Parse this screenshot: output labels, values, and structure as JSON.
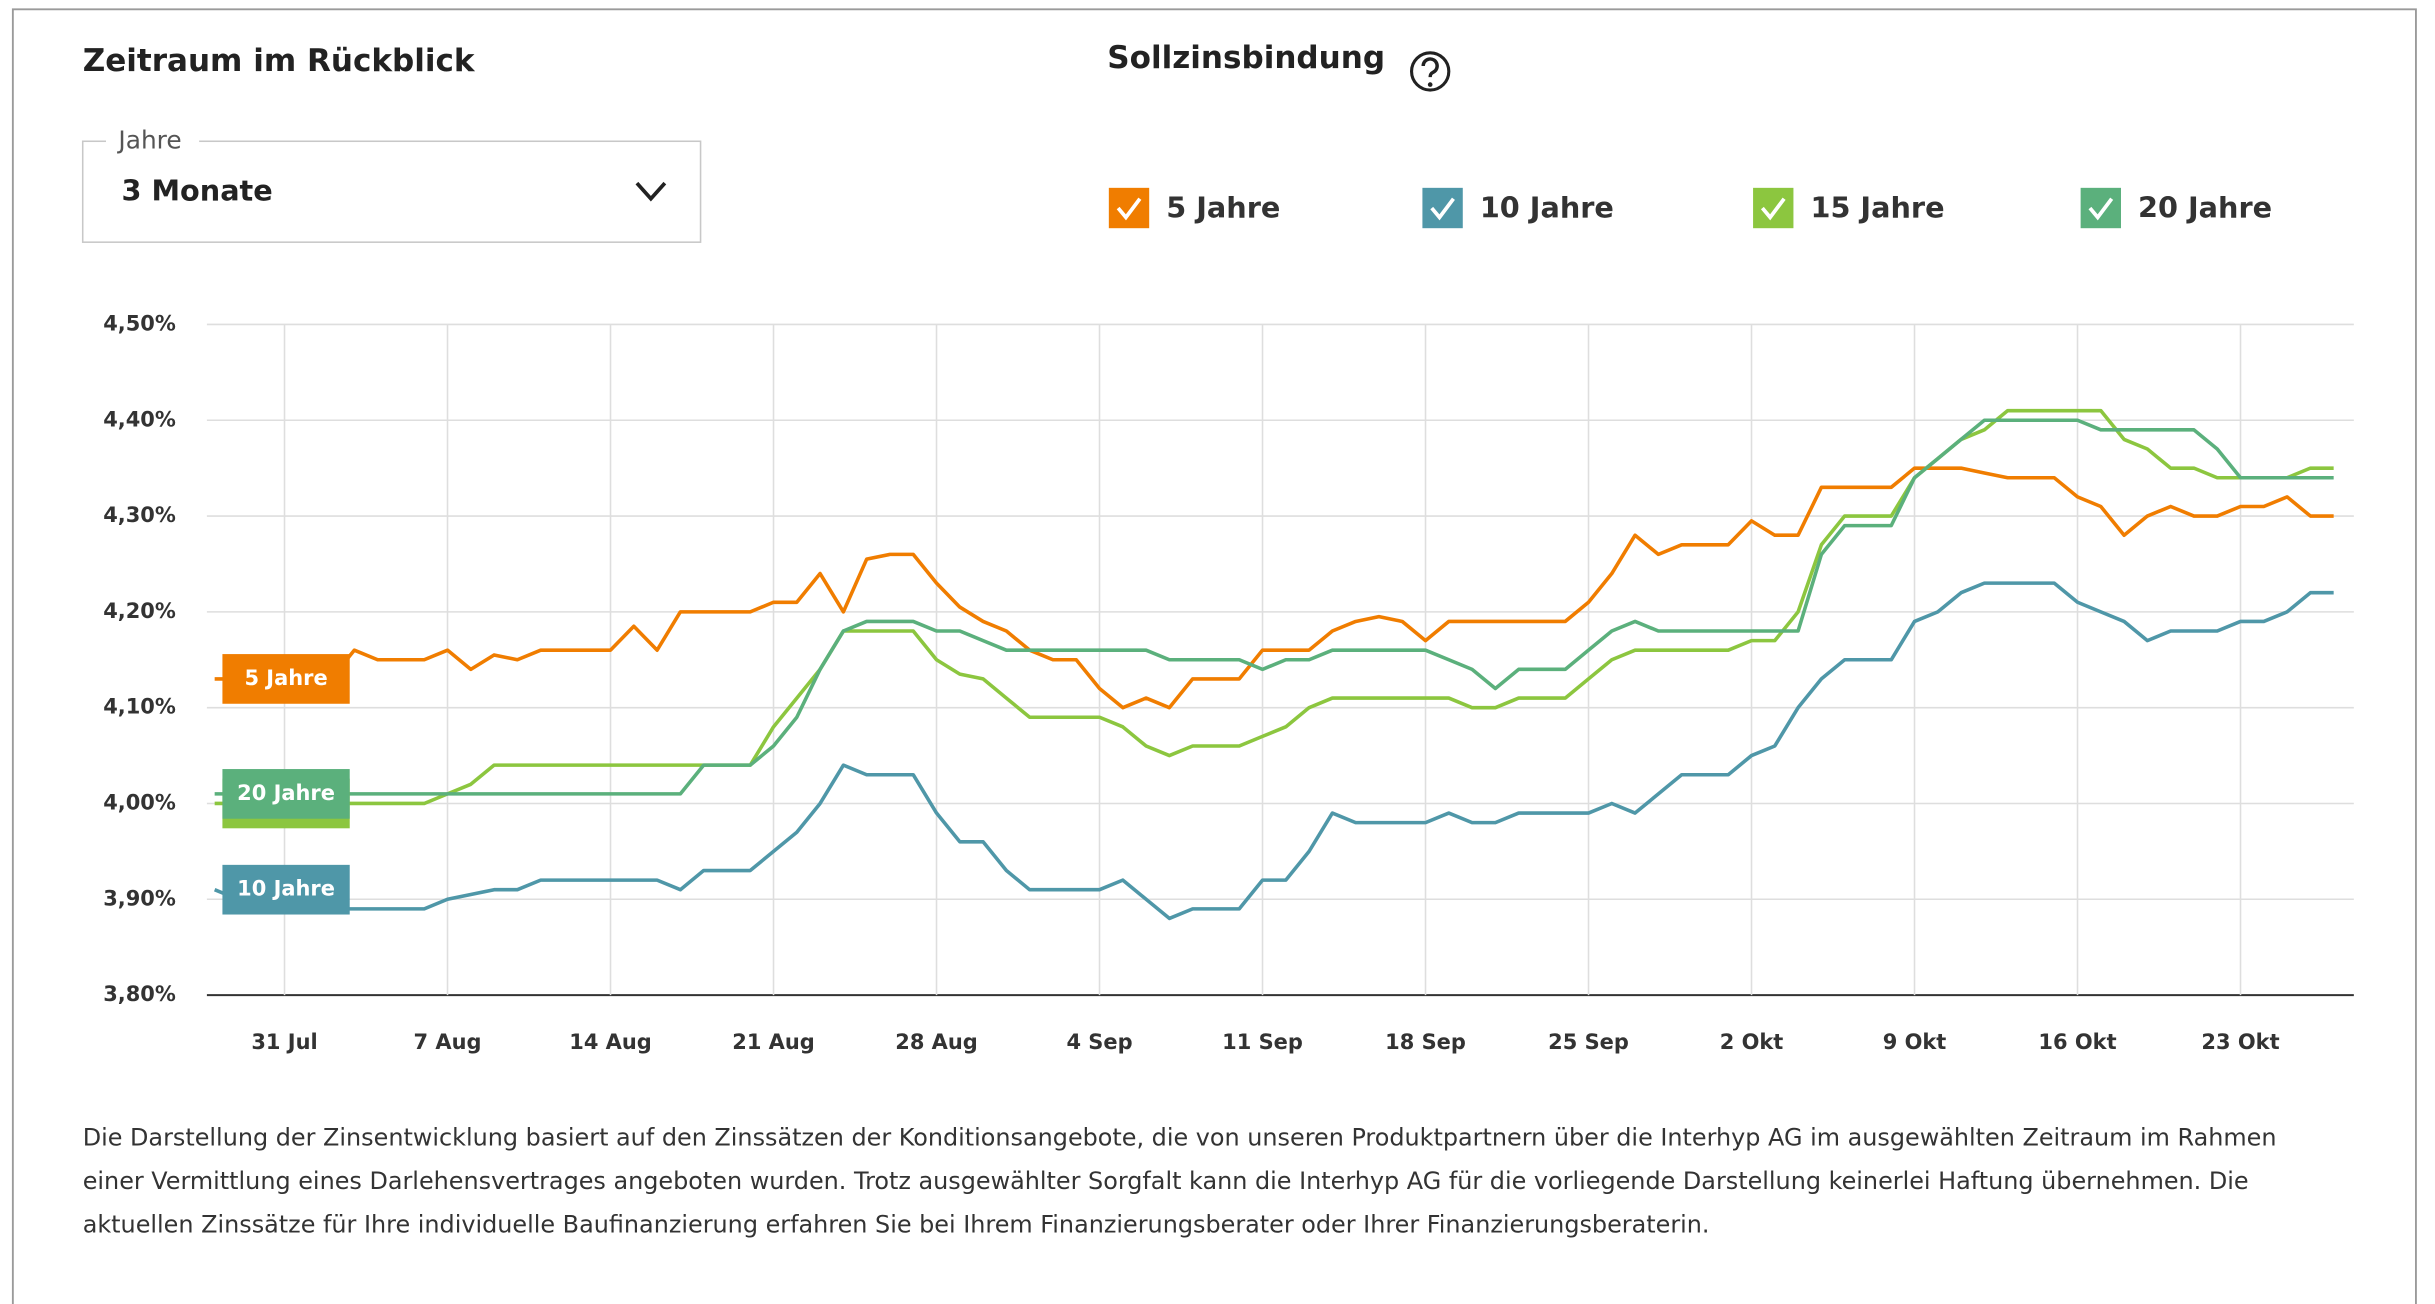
{
  "filter": {
    "title": "Zeitraum im Rückblick",
    "dropdown_label": "Jahre",
    "dropdown_value": "3 Monate"
  },
  "legend_title": "Sollzinsbindung",
  "footnote": "Die Darstellung der Zinsentwicklung basiert auf den Zinssätzen der Konditionsangebote, die von unseren Produktpartnern über die Interhyp AG im ausgewählten Zeitraum im Rahmen einer Vermittlung eines Darlehensvertrages angeboten wurden. Trotz ausgewählter Sorgfalt kann die Interhyp AG für die vorliegende Darstellung keinerlei Haftung übernehmen. Die aktuellen Zinssätze für Ihre individuelle Baufinanzierung erfahren Sie bei Ihrem Finanzierungsberater oder Ihrer Finanzierungsberaterin.",
  "chart_data": {
    "type": "line",
    "x": [
      "28 Jul",
      "29 Jul",
      "30 Jul",
      "31 Jul",
      "1 Aug",
      "2 Aug",
      "3 Aug",
      "4 Aug",
      "5 Aug",
      "6 Aug",
      "7 Aug",
      "8 Aug",
      "9 Aug",
      "10 Aug",
      "11 Aug",
      "12 Aug",
      "13 Aug",
      "14 Aug",
      "15 Aug",
      "16 Aug",
      "17 Aug",
      "18 Aug",
      "19 Aug",
      "20 Aug",
      "21 Aug",
      "22 Aug",
      "23 Aug",
      "24 Aug",
      "25 Aug",
      "26 Aug",
      "27 Aug",
      "28 Aug",
      "29 Aug",
      "30 Aug",
      "31 Aug",
      "1 Sep",
      "2 Sep",
      "3 Sep",
      "4 Sep",
      "5 Sep",
      "6 Sep",
      "7 Sep",
      "8 Sep",
      "9 Sep",
      "10 Sep",
      "11 Sep",
      "12 Sep",
      "13 Sep",
      "14 Sep",
      "15 Sep",
      "16 Sep",
      "17 Sep",
      "18 Sep",
      "19 Sep",
      "20 Sep",
      "21 Sep",
      "22 Sep",
      "23 Sep",
      "24 Sep",
      "25 Sep",
      "26 Sep",
      "27 Sep",
      "28 Sep",
      "29 Sep",
      "30 Sep",
      "1 Okt",
      "2 Okt",
      "3 Okt",
      "4 Okt",
      "5 Okt",
      "6 Okt",
      "7 Okt",
      "8 Okt",
      "9 Okt",
      "10 Okt",
      "11 Okt",
      "12 Okt",
      "13 Okt",
      "14 Okt",
      "15 Okt",
      "16 Okt",
      "17 Okt",
      "18 Okt",
      "19 Okt",
      "20 Okt",
      "21 Okt",
      "22 Okt",
      "23 Okt",
      "24 Okt",
      "25 Okt",
      "26 Okt",
      "27 Okt"
    ],
    "xticks": [
      "31 Jul",
      "7 Aug",
      "14 Aug",
      "21 Aug",
      "28 Aug",
      "4 Sep",
      "11 Sep",
      "18 Sep",
      "25 Sep",
      "2 Okt",
      "9 Okt",
      "16 Okt",
      "23 Okt"
    ],
    "ylim": [
      3.8,
      4.5
    ],
    "yticks": [
      {
        "value": 3.8,
        "label": "3,80%"
      },
      {
        "value": 3.9,
        "label": "3,90%"
      },
      {
        "value": 4.0,
        "label": "4,00%"
      },
      {
        "value": 4.1,
        "label": "4,10%"
      },
      {
        "value": 4.2,
        "label": "4,20%"
      },
      {
        "value": 4.3,
        "label": "4,30%"
      },
      {
        "value": 4.4,
        "label": "4,40%"
      },
      {
        "value": 4.5,
        "label": "4,50%"
      }
    ],
    "grid": true,
    "series": [
      {
        "name": "5 Jahre",
        "color": "#f07d00",
        "values": [
          4.13,
          4.13,
          4.13,
          4.13,
          4.13,
          4.13,
          4.16,
          4.15,
          4.15,
          4.15,
          4.16,
          4.14,
          4.155,
          4.15,
          4.16,
          4.16,
          4.16,
          4.16,
          4.185,
          4.16,
          4.2,
          4.2,
          4.2,
          4.2,
          4.21,
          4.21,
          4.24,
          4.2,
          4.255,
          4.26,
          4.26,
          4.23,
          4.205,
          4.19,
          4.18,
          4.16,
          4.15,
          4.15,
          4.12,
          4.1,
          4.11,
          4.1,
          4.13,
          4.13,
          4.13,
          4.16,
          4.16,
          4.16,
          4.18,
          4.19,
          4.195,
          4.19,
          4.17,
          4.19,
          4.19,
          4.19,
          4.19,
          4.19,
          4.19,
          4.21,
          4.24,
          4.28,
          4.26,
          4.27,
          4.27,
          4.27,
          4.295,
          4.28,
          4.28,
          4.33,
          4.33,
          4.33,
          4.33,
          4.35,
          4.35,
          4.35,
          4.345,
          4.34,
          4.34,
          4.34,
          4.32,
          4.31,
          4.28,
          4.3,
          4.31,
          4.3,
          4.3,
          4.31,
          4.31,
          4.32,
          4.3,
          4.3
        ]
      },
      {
        "name": "10 Jahre",
        "color": "#4f97a8",
        "values": [
          3.91,
          3.9,
          3.89,
          3.89,
          3.89,
          3.89,
          3.89,
          3.89,
          3.89,
          3.89,
          3.9,
          3.905,
          3.91,
          3.91,
          3.92,
          3.92,
          3.92,
          3.92,
          3.92,
          3.92,
          3.91,
          3.93,
          3.93,
          3.93,
          3.95,
          3.97,
          4.0,
          4.04,
          4.03,
          4.03,
          4.03,
          3.99,
          3.96,
          3.96,
          3.93,
          3.91,
          3.91,
          3.91,
          3.91,
          3.92,
          3.9,
          3.88,
          3.89,
          3.89,
          3.89,
          3.92,
          3.92,
          3.95,
          3.99,
          3.98,
          3.98,
          3.98,
          3.98,
          3.99,
          3.98,
          3.98,
          3.99,
          3.99,
          3.99,
          3.99,
          4.0,
          3.99,
          4.01,
          4.03,
          4.03,
          4.03,
          4.05,
          4.06,
          4.1,
          4.13,
          4.15,
          4.15,
          4.15,
          4.19,
          4.2,
          4.22,
          4.23,
          4.23,
          4.23,
          4.23,
          4.21,
          4.2,
          4.19,
          4.17,
          4.18,
          4.18,
          4.18,
          4.19,
          4.19,
          4.2,
          4.22,
          4.22
        ]
      },
      {
        "name": "15 Jahre",
        "color": "#8cc63f",
        "values": [
          4.0,
          4.0,
          4.0,
          4.0,
          4.0,
          4.0,
          4.0,
          4.0,
          4.0,
          4.0,
          4.01,
          4.02,
          4.04,
          4.04,
          4.04,
          4.04,
          4.04,
          4.04,
          4.04,
          4.04,
          4.04,
          4.04,
          4.04,
          4.04,
          4.08,
          4.11,
          4.14,
          4.18,
          4.18,
          4.18,
          4.18,
          4.15,
          4.135,
          4.13,
          4.11,
          4.09,
          4.09,
          4.09,
          4.09,
          4.08,
          4.06,
          4.05,
          4.06,
          4.06,
          4.06,
          4.07,
          4.08,
          4.1,
          4.11,
          4.11,
          4.11,
          4.11,
          4.11,
          4.11,
          4.1,
          4.1,
          4.11,
          4.11,
          4.11,
          4.13,
          4.15,
          4.16,
          4.16,
          4.16,
          4.16,
          4.16,
          4.17,
          4.17,
          4.2,
          4.27,
          4.3,
          4.3,
          4.3,
          4.34,
          4.36,
          4.38,
          4.39,
          4.41,
          4.41,
          4.41,
          4.41,
          4.41,
          4.38,
          4.37,
          4.35,
          4.35,
          4.34,
          4.34,
          4.34,
          4.34,
          4.35,
          4.35
        ]
      },
      {
        "name": "20 Jahre",
        "color": "#5bb07c",
        "values": [
          4.01,
          4.01,
          4.01,
          4.01,
          4.01,
          4.01,
          4.01,
          4.01,
          4.01,
          4.01,
          4.01,
          4.01,
          4.01,
          4.01,
          4.01,
          4.01,
          4.01,
          4.01,
          4.01,
          4.01,
          4.01,
          4.04,
          4.04,
          4.04,
          4.06,
          4.09,
          4.14,
          4.18,
          4.19,
          4.19,
          4.19,
          4.18,
          4.18,
          4.17,
          4.16,
          4.16,
          4.16,
          4.16,
          4.16,
          4.16,
          4.16,
          4.15,
          4.15,
          4.15,
          4.15,
          4.14,
          4.15,
          4.15,
          4.16,
          4.16,
          4.16,
          4.16,
          4.16,
          4.15,
          4.14,
          4.12,
          4.14,
          4.14,
          4.14,
          4.16,
          4.18,
          4.19,
          4.18,
          4.18,
          4.18,
          4.18,
          4.18,
          4.18,
          4.18,
          4.26,
          4.29,
          4.29,
          4.29,
          4.34,
          4.36,
          4.38,
          4.4,
          4.4,
          4.4,
          4.4,
          4.4,
          4.39,
          4.39,
          4.39,
          4.39,
          4.39,
          4.37,
          4.34,
          4.34,
          4.34,
          4.34,
          4.34
        ]
      }
    ]
  }
}
